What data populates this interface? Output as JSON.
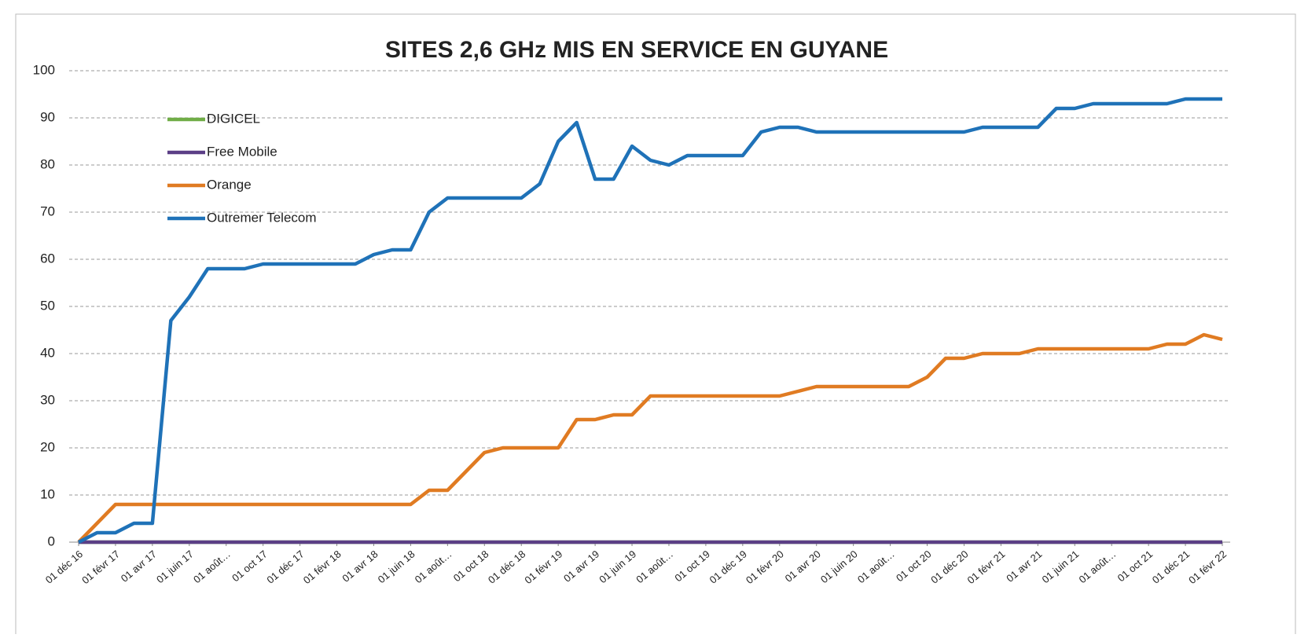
{
  "chart_data": {
    "type": "line",
    "title": "SITES 2,6 GHz MIS EN SERVICE EN GUYANE",
    "categories": [
      "01 déc 16",
      null,
      "01 févr 17",
      null,
      "01 avr 17",
      null,
      "01 juin 17",
      null,
      "01 août…",
      null,
      "01 oct 17",
      null,
      "01 déc 17",
      null,
      "01 févr 18",
      null,
      "01 avr 18",
      null,
      "01 juin 18",
      null,
      "01 août…",
      null,
      "01 oct 18",
      null,
      "01 déc 18",
      null,
      "01 févr 19",
      null,
      "01 avr 19",
      null,
      "01 juin 19",
      null,
      "01 août…",
      null,
      "01 oct 19",
      null,
      "01 déc 19",
      null,
      "01 févr 20",
      null,
      "01 avr 20",
      null,
      "01 juin 20",
      null,
      "01 août…",
      null,
      "01 oct 20",
      null,
      "01 déc 20",
      null,
      "01 févr 21",
      null,
      "01 avr 21",
      null,
      "01 juin 21",
      null,
      "01 août…",
      null,
      "01 oct 21",
      null,
      "01 déc 21",
      null,
      "01 févr 22"
    ],
    "series": [
      {
        "name": "DIGICEL",
        "color": "#70ad47",
        "values": [
          0,
          0,
          0,
          0,
          0,
          0,
          0,
          0,
          0,
          0,
          0,
          0,
          0,
          0,
          0,
          0,
          0,
          0,
          0,
          0,
          0,
          0,
          0,
          0,
          0,
          0,
          0,
          0,
          0,
          0,
          0,
          0,
          0,
          0,
          0,
          0,
          0,
          0,
          0,
          0,
          0,
          0,
          0,
          0,
          0,
          0,
          0,
          0,
          0,
          0,
          0,
          0,
          0,
          0,
          0,
          0,
          0,
          0,
          0,
          0,
          0,
          0,
          0
        ]
      },
      {
        "name": "Free Mobile",
        "color": "#5b3f86",
        "values": [
          0,
          0,
          0,
          0,
          0,
          0,
          0,
          0,
          0,
          0,
          0,
          0,
          0,
          0,
          0,
          0,
          0,
          0,
          0,
          0,
          0,
          0,
          0,
          0,
          0,
          0,
          0,
          0,
          0,
          0,
          0,
          0,
          0,
          0,
          0,
          0,
          0,
          0,
          0,
          0,
          0,
          0,
          0,
          0,
          0,
          0,
          0,
          0,
          0,
          0,
          0,
          0,
          0,
          0,
          0,
          0,
          0,
          0,
          0,
          0,
          0,
          0,
          0
        ]
      },
      {
        "name": "Orange",
        "color": "#e07b22",
        "values": [
          0,
          4,
          8,
          8,
          8,
          8,
          8,
          8,
          8,
          8,
          8,
          8,
          8,
          8,
          8,
          8,
          8,
          8,
          8,
          11,
          11,
          15,
          19,
          20,
          20,
          20,
          20,
          26,
          26,
          27,
          27,
          31,
          31,
          31,
          31,
          31,
          31,
          31,
          31,
          32,
          33,
          33,
          33,
          33,
          33,
          33,
          35,
          39,
          39,
          40,
          40,
          40,
          41,
          41,
          41,
          41,
          41,
          41,
          41,
          42,
          42,
          44,
          43
        ]
      },
      {
        "name": "Outremer Telecom",
        "color": "#1f72b8",
        "values": [
          0,
          2,
          2,
          4,
          4,
          47,
          52,
          58,
          58,
          58,
          59,
          59,
          59,
          59,
          59,
          59,
          61,
          62,
          62,
          70,
          73,
          73,
          73,
          73,
          73,
          76,
          85,
          89,
          77,
          77,
          84,
          81,
          80,
          82,
          82,
          82,
          82,
          87,
          88,
          88,
          87,
          87,
          87,
          87,
          87,
          87,
          87,
          87,
          87,
          88,
          88,
          88,
          88,
          92,
          92,
          93,
          93,
          93,
          93,
          93,
          94,
          94,
          94
        ]
      }
    ],
    "ylim": [
      0,
      100
    ],
    "yticks": [
      0,
      10,
      20,
      30,
      40,
      50,
      60,
      70,
      80,
      90,
      100
    ],
    "grid": true
  }
}
